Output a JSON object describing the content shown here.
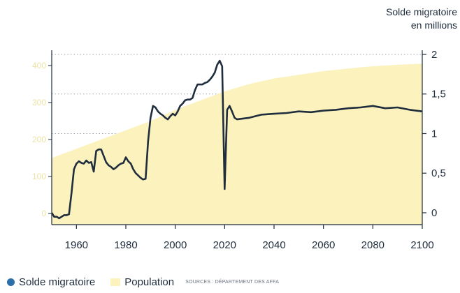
{
  "chart_data": {
    "type": "line",
    "left_axis_title": [
      "",
      ""
    ],
    "right_axis_title": [
      "Solde migratoire",
      "en millions"
    ],
    "x_ticks": [
      1960,
      1980,
      2000,
      2020,
      2040,
      2060,
      2080,
      2100
    ],
    "xlim": [
      1950,
      2100
    ],
    "right_ticks": [
      "0",
      "0,5",
      "1",
      "1,5",
      "2"
    ],
    "right_tick_values": [
      0,
      0.5,
      1,
      1.5,
      2
    ],
    "right_ylim": [
      -0.15,
      2
    ],
    "left_ticks": [
      "0",
      "100",
      "200",
      "300",
      "400"
    ],
    "left_tick_values": [
      0,
      100,
      200,
      300,
      400
    ],
    "left_ylim": [
      -30,
      430
    ],
    "grid": true,
    "series": [
      {
        "name": "Solde migratoire",
        "type": "line",
        "axis": "right",
        "color": "#1f2d3d",
        "x": [
          1950,
          1951,
          1952,
          1953,
          1954,
          1955,
          1956,
          1957,
          1958,
          1959,
          1960,
          1961,
          1962,
          1963,
          1964,
          1965,
          1966,
          1967,
          1968,
          1969,
          1970,
          1971,
          1972,
          1973,
          1974,
          1975,
          1976,
          1977,
          1978,
          1979,
          1980,
          1981,
          1982,
          1983,
          1984,
          1985,
          1986,
          1987,
          1988,
          1989,
          1990,
          1991,
          1992,
          1993,
          1994,
          1995,
          1996,
          1997,
          1998,
          1999,
          2000,
          2001,
          2002,
          2003,
          2004,
          2005,
          2006,
          2007,
          2008,
          2009,
          2010,
          2011,
          2012,
          2013,
          2014,
          2015,
          2016,
          2017,
          2018,
          2019,
          2020,
          2021,
          2022,
          2023,
          2024,
          2025,
          2030,
          2035,
          2040,
          2045,
          2050,
          2055,
          2060,
          2065,
          2070,
          2075,
          2080,
          2085,
          2090,
          2095,
          2100
        ],
        "values": [
          0.0,
          -0.05,
          -0.05,
          -0.07,
          -0.05,
          -0.03,
          -0.03,
          -0.02,
          0.25,
          0.55,
          0.62,
          0.65,
          0.63,
          0.62,
          0.66,
          0.63,
          0.64,
          0.52,
          0.78,
          0.8,
          0.8,
          0.72,
          0.64,
          0.6,
          0.58,
          0.55,
          0.57,
          0.6,
          0.62,
          0.63,
          0.7,
          0.65,
          0.62,
          0.55,
          0.5,
          0.47,
          0.44,
          0.42,
          0.43,
          0.9,
          1.2,
          1.35,
          1.33,
          1.28,
          1.25,
          1.23,
          1.2,
          1.18,
          1.22,
          1.25,
          1.23,
          1.28,
          1.35,
          1.38,
          1.42,
          1.43,
          1.43,
          1.45,
          1.55,
          1.62,
          1.62,
          1.62,
          1.64,
          1.65,
          1.68,
          1.72,
          1.77,
          1.87,
          1.92,
          1.85,
          0.3,
          1.3,
          1.35,
          1.28,
          1.2,
          1.18,
          1.2,
          1.24,
          1.25,
          1.26,
          1.28,
          1.27,
          1.29,
          1.3,
          1.32,
          1.33,
          1.35,
          1.32,
          1.33,
          1.3,
          1.28
        ]
      },
      {
        "name": "Population",
        "type": "area",
        "axis": "left",
        "color": "#fbf2be",
        "x": [
          1950,
          1960,
          1970,
          1980,
          1990,
          2000,
          2010,
          2020,
          2030,
          2040,
          2050,
          2060,
          2070,
          2080,
          2090,
          2100
        ],
        "values": [
          150,
          175,
          200,
          225,
          250,
          280,
          305,
          330,
          350,
          365,
          375,
          385,
          392,
          398,
          402,
          405
        ]
      }
    ],
    "legend": [
      "Solde migratoire",
      "Population"
    ],
    "legend_position": "bottom-left",
    "source_note": "SOURCES : DÉPARTEMENT DES AFFA"
  }
}
